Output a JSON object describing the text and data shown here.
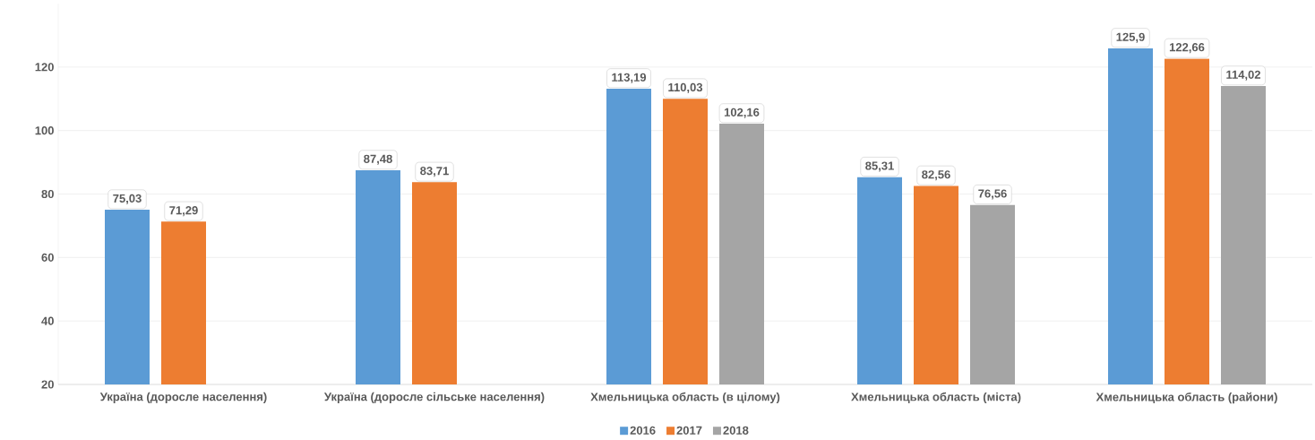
{
  "chart_data": {
    "type": "bar",
    "categories": [
      "Україна (доросле населення)",
      "Україна (доросле сільське населення)",
      "Хмельницька область (в цілому)",
      "Хмельницька область (міста)",
      "Хмельницька область (райони)"
    ],
    "series": [
      {
        "name": "2016",
        "color": "#5b9bd5",
        "values": [
          75.03,
          87.48,
          113.19,
          85.31,
          125.9
        ],
        "value_labels": [
          "75,03",
          "87,48",
          "113,19",
          "85,31",
          "125,9"
        ]
      },
      {
        "name": "2017",
        "color": "#ed7d31",
        "values": [
          71.29,
          83.71,
          110.03,
          82.56,
          122.66
        ],
        "value_labels": [
          "71,29",
          "83,71",
          "110,03",
          "82,56",
          "122,66"
        ]
      },
      {
        "name": "2018",
        "color": "#a5a5a5",
        "values": [
          null,
          null,
          102.16,
          76.56,
          114.02
        ],
        "value_labels": [
          null,
          null,
          "102,16",
          "76,56",
          "114,02"
        ]
      }
    ],
    "ylim": [
      20,
      140
    ],
    "yticks": [
      20,
      40,
      60,
      80,
      100,
      120
    ],
    "grid": "y",
    "legend": "bottom"
  }
}
